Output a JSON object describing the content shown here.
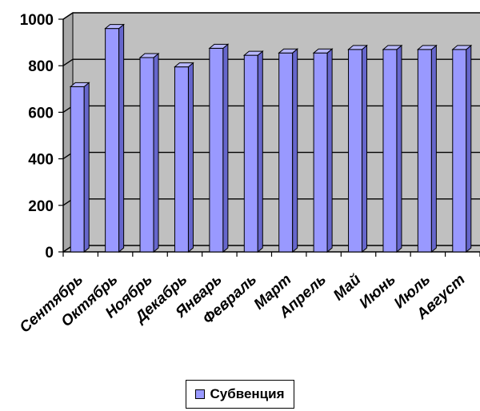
{
  "chart_data": {
    "type": "bar",
    "categories": [
      "Сентябрь",
      "Октябрь",
      "Ноябрь",
      "Декабрь",
      "Январь",
      "Февраль",
      "Март",
      "Апрель",
      "Май",
      "Июнь",
      "Июль",
      "Август"
    ],
    "series": [
      {
        "name": "Субвенция",
        "values": [
          710,
          960,
          835,
          795,
          875,
          845,
          855,
          855,
          870,
          870,
          870,
          870
        ],
        "color": "#9999ff"
      }
    ],
    "yticks": [
      0,
      200,
      400,
      600,
      800,
      1000
    ],
    "ylim": [
      0,
      1000
    ],
    "grid": true,
    "legend_position": "bottom",
    "colors": {
      "bar": "#9999ff",
      "wall": "#c0c0c0",
      "floor": "#c0c0c0"
    }
  }
}
